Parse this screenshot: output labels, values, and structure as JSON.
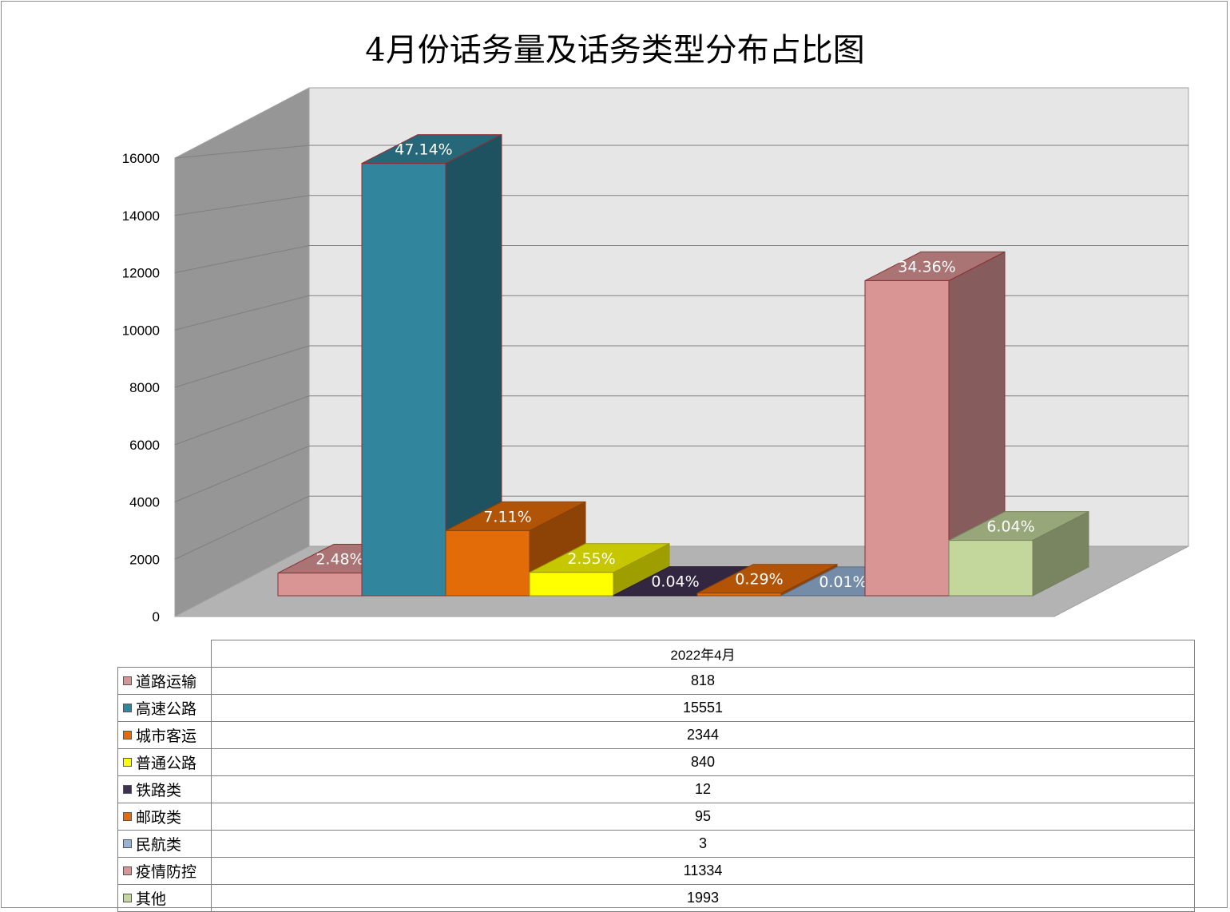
{
  "chart_data": {
    "type": "bar",
    "title": "4月份话务量及话务类型分布占比图",
    "category": "2022年4月",
    "ylim": [
      0,
      16000
    ],
    "yticks": [
      0,
      2000,
      4000,
      6000,
      8000,
      10000,
      12000,
      14000,
      16000
    ],
    "grid": true,
    "legend": "table-bottom",
    "series": [
      {
        "name": "道路运输",
        "value": 818,
        "label": "2.48%",
        "color": "#d99594"
      },
      {
        "name": "高速公路",
        "value": 15551,
        "label": "47.14%",
        "color": "#31859c"
      },
      {
        "name": "城市客运",
        "value": 2344,
        "label": "7.11%",
        "color": "#e36c09"
      },
      {
        "name": "普通公路",
        "value": 840,
        "label": "2.55%",
        "color": "#ffff00"
      },
      {
        "name": "铁路类",
        "value": 12,
        "label": "0.04%",
        "color": "#403152"
      },
      {
        "name": "邮政类",
        "value": 95,
        "label": "0.29%",
        "color": "#e46c0a"
      },
      {
        "name": "民航类",
        "value": 3,
        "label": "0.01%",
        "color": "#95b3d7"
      },
      {
        "name": "疫情防控",
        "value": 11334,
        "label": "34.36%",
        "color": "#d99594"
      },
      {
        "name": "其他",
        "value": 1993,
        "label": "6.04%",
        "color": "#c3d69b"
      }
    ]
  }
}
